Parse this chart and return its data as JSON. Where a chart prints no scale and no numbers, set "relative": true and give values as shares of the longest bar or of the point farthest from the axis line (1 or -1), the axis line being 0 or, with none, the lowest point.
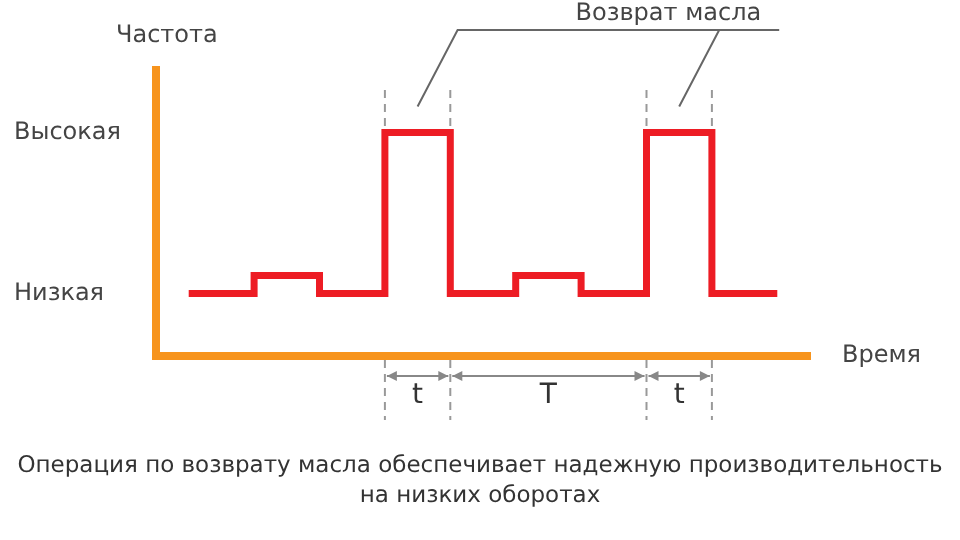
{
  "chart_data": {
    "type": "step",
    "xlabel": "Время",
    "ylabel": "Частота",
    "relative": true,
    "categories": [
      null,
      null,
      null,
      null,
      null,
      null,
      null,
      null,
      null,
      null
    ],
    "series": [
      {
        "color": "#ed1c24",
        "values": [
          0.28,
          0.36,
          0.28,
          1,
          0.28,
          0.36,
          0.28,
          1,
          0.28,
          0.28
        ]
      }
    ],
    "grid": false,
    "legend": false,
    "marker": "none",
    "line_style": "solid",
    "annotations": [
      "Возврат масла",
      "t",
      "T",
      "t",
      "Операция по возврату масла обеспечивает надежную производительность на низких оборотах",
      "Высокая",
      "Низкая"
    ]
  }
}
